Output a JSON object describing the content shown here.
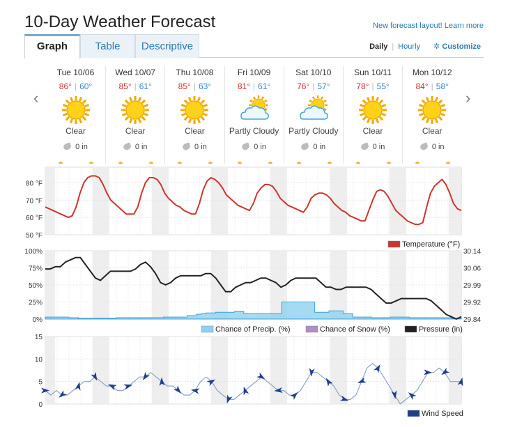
{
  "title": "10-Day Weather Forecast",
  "top_link": "New forecast layout! Learn more",
  "tabs": [
    {
      "label": "Graph",
      "active": true
    },
    {
      "label": "Table",
      "active": false
    },
    {
      "label": "Descriptive",
      "active": false
    }
  ],
  "view": {
    "daily": "Daily",
    "hourly": "Hourly",
    "customize": "Customize"
  },
  "icons": {
    "nav_prev": "chevron-left-icon",
    "nav_next": "chevron-right-icon",
    "settings": "gear-icon",
    "precip": "raindrop-icon"
  },
  "colors": {
    "hi_temp": "#d0342c",
    "lo_temp": "#3a86c8",
    "temperature": "#d0342c",
    "precip": "#8fd1f0",
    "snow": "#b18ec6",
    "pressure": "#222222",
    "wind": "#1f3f8c"
  },
  "days": [
    {
      "name": "Tue 10/06",
      "hi": "86°",
      "lo": "60°",
      "condition": "Clear",
      "icon": "sun-icon",
      "precip": "0 in"
    },
    {
      "name": "Wed 10/07",
      "hi": "85°",
      "lo": "61°",
      "condition": "Clear",
      "icon": "sun-icon",
      "precip": "0 in"
    },
    {
      "name": "Thu 10/08",
      "hi": "85°",
      "lo": "63°",
      "condition": "Clear",
      "icon": "sun-icon",
      "precip": "0 in"
    },
    {
      "name": "Fri 10/09",
      "hi": "81°",
      "lo": "61°",
      "condition": "Partly Cloudy",
      "icon": "partly-cloudy-icon",
      "precip": "0 in"
    },
    {
      "name": "Sat 10/10",
      "hi": "76°",
      "lo": "57°",
      "condition": "Partly Cloudy",
      "icon": "partly-cloudy-icon",
      "precip": "0 in"
    },
    {
      "name": "Sun 10/11",
      "hi": "78°",
      "lo": "55°",
      "condition": "Clear",
      "icon": "sun-icon",
      "precip": "0 in"
    },
    {
      "name": "Mon 10/12",
      "hi": "84°",
      "lo": "58°",
      "condition": "Clear",
      "icon": "sun-icon",
      "precip": "0 in"
    }
  ],
  "chart_data": [
    {
      "type": "line",
      "yticks": [
        "80 °F",
        "70 °F",
        "60 °F",
        "50 °F"
      ],
      "ylim": [
        50,
        85
      ],
      "legend": [
        {
          "label": "Temperature (°F)"
        }
      ],
      "series": [
        {
          "name": "Temperature (°F)",
          "values": [
            66,
            65,
            64,
            63,
            62,
            61,
            60,
            61,
            66,
            74,
            80,
            83,
            84,
            84,
            83,
            79,
            74,
            70,
            68,
            66,
            64,
            62,
            62,
            62,
            66,
            74,
            80,
            83,
            83,
            82,
            79,
            74,
            71,
            69,
            67,
            66,
            64,
            63,
            62,
            62,
            68,
            76,
            81,
            83,
            82,
            80,
            77,
            73,
            71,
            69,
            67,
            66,
            65,
            64,
            68,
            74,
            77,
            79,
            79,
            78,
            75,
            71,
            69,
            67,
            66,
            65,
            64,
            63,
            66,
            71,
            73,
            74,
            74,
            73,
            71,
            68,
            66,
            64,
            63,
            61,
            60,
            59,
            58,
            58,
            64,
            70,
            75,
            76,
            75,
            72,
            68,
            64,
            62,
            60,
            58,
            57,
            56,
            56,
            57,
            66,
            74,
            78,
            80,
            82,
            79,
            74,
            68,
            65,
            64
          ]
        }
      ]
    },
    {
      "type": "line",
      "yticks_left": [
        "100%",
        "75%",
        "50%",
        "25%",
        "0%"
      ],
      "yticks_right": [
        "30.14",
        "30.06",
        "29.99",
        "29.92",
        "29.84"
      ],
      "legend": [
        {
          "label": "Chance of Precip. (%)"
        },
        {
          "label": "Chance of Snow (%)"
        },
        {
          "label": "Pressure (in)"
        }
      ],
      "series": [
        {
          "name": "Chance of Precip. (%)",
          "values": [
            3,
            3,
            3,
            3,
            3,
            2,
            2,
            1,
            1,
            1,
            1,
            1,
            1,
            1,
            1,
            2,
            2,
            2,
            2,
            2,
            2,
            2,
            2,
            2,
            2,
            3,
            3,
            3,
            3,
            3,
            5,
            5,
            7,
            8,
            9,
            9,
            10,
            10,
            10,
            10,
            11,
            11,
            8,
            8,
            8,
            8,
            8,
            8,
            8,
            8,
            25,
            25,
            25,
            25,
            25,
            25,
            25,
            10,
            10,
            10,
            12,
            12,
            12,
            8,
            8,
            3,
            3,
            3,
            3,
            2,
            2,
            2,
            2,
            3,
            3,
            3,
            3,
            2,
            2,
            2,
            2,
            2,
            2,
            2,
            2,
            2,
            1,
            1
          ]
        },
        {
          "name": "Pressure (in)",
          "values": [
            30.06,
            30.06,
            30.07,
            30.07,
            30.09,
            30.1,
            30.11,
            30.11,
            30.08,
            30.05,
            30.02,
            30.01,
            30.03,
            30.05,
            30.05,
            30.05,
            30.05,
            30.05,
            30.06,
            30.08,
            30.09,
            30.07,
            30.04,
            30.0,
            29.99,
            30.0,
            30.02,
            30.03,
            30.03,
            30.03,
            30.03,
            30.03,
            30.04,
            30.04,
            30.02,
            29.99,
            29.96,
            29.96,
            29.98,
            29.99,
            30.0,
            30.0,
            30.01,
            30.02,
            30.02,
            30.01,
            30.0,
            29.98,
            29.99,
            30.01,
            30.02,
            30.02,
            30.02,
            30.02,
            30.02,
            30.0,
            29.98,
            29.98,
            29.97,
            29.97,
            29.98,
            29.98,
            29.98,
            29.98,
            29.98,
            29.97,
            29.95,
            29.93,
            29.91,
            29.91,
            29.92,
            29.93,
            29.93,
            29.93,
            29.93,
            29.93,
            29.93,
            29.92,
            29.9,
            29.88,
            29.86,
            29.85,
            29.84,
            29.85
          ]
        }
      ]
    },
    {
      "type": "line",
      "yticks": [
        "15",
        "10",
        "5",
        "0"
      ],
      "ylim": [
        0,
        15
      ],
      "legend": [
        {
          "label": "Wind Speed"
        }
      ],
      "series": [
        {
          "name": "Wind Speed",
          "values": [
            3,
            2,
            3,
            2,
            2,
            3,
            4,
            5,
            5,
            6,
            5,
            4,
            4,
            3,
            3,
            4,
            5,
            6,
            6,
            7,
            6,
            5,
            4,
            4,
            3,
            2,
            2,
            3,
            5,
            6,
            5,
            3,
            2,
            1,
            1,
            2,
            3,
            4,
            5,
            6,
            5,
            4,
            3,
            3,
            2,
            2,
            3,
            5,
            7,
            7,
            6,
            5,
            4,
            2,
            1,
            1,
            2,
            5,
            8,
            9,
            8,
            6,
            4,
            2,
            0,
            1,
            2,
            3,
            5,
            7,
            7,
            8,
            7,
            5,
            5,
            5
          ]
        }
      ]
    }
  ]
}
